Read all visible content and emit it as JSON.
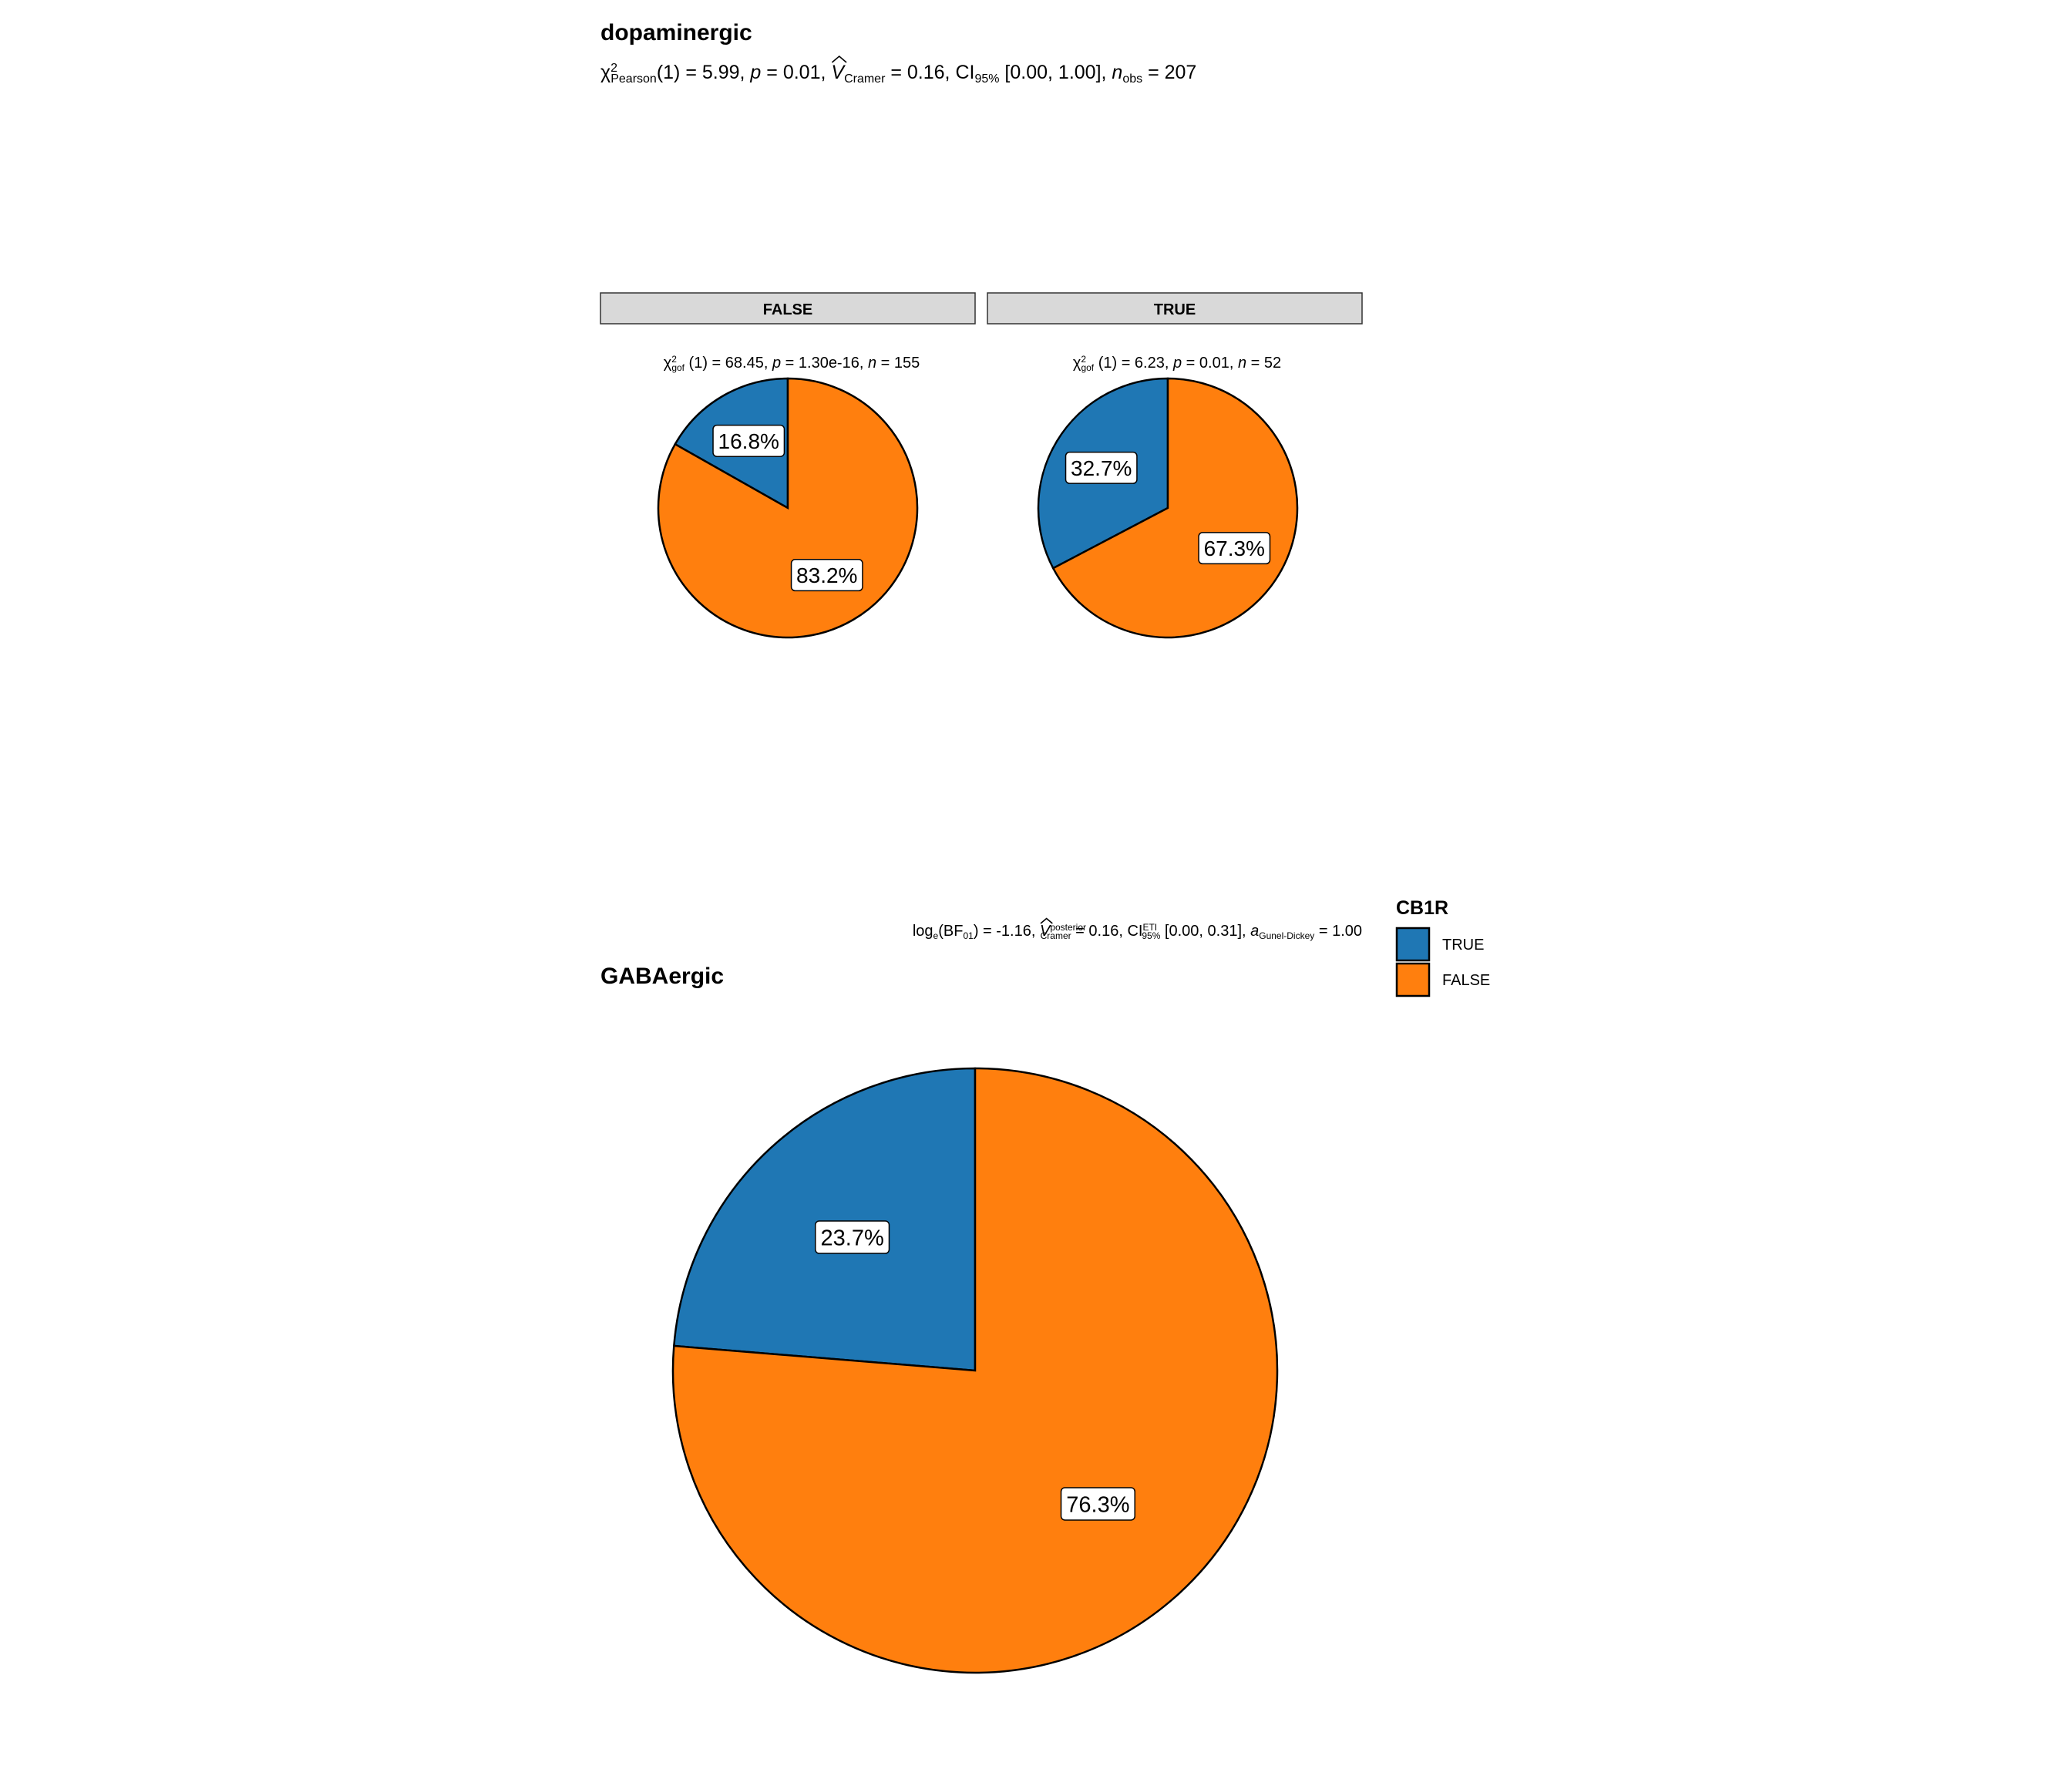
{
  "chart_data": [
    {
      "type": "pie",
      "title": "dopaminergic",
      "subtitle": {
        "parts": [
          {
            "t": "χ"
          },
          {
            "t": "2",
            "sup": true
          },
          {
            "t": "Pearson",
            "sub": true
          },
          {
            "t": "(1) = 5.99, "
          },
          {
            "t": "p",
            "it": true
          },
          {
            "t": " = 0.01, "
          },
          {
            "t": "V",
            "it": true,
            "hat": true
          },
          {
            "t": "Cramer",
            "sub": true
          },
          {
            "t": " = 0.16, CI"
          },
          {
            "t": "95%",
            "sub": true
          },
          {
            "t": " [0.00, 1.00], "
          },
          {
            "t": "n",
            "it": true
          },
          {
            "t": "obs",
            "sub": true
          },
          {
            "t": " = 207"
          }
        ]
      },
      "facets": [
        {
          "strip": "FALSE",
          "stat": {
            "parts": [
              {
                "t": "χ"
              },
              {
                "t": "2",
                "sup": true
              },
              {
                "t": "gof",
                "sub": true
              },
              {
                "t": " (1) = 68.45,   "
              },
              {
                "t": "p",
                "it": true
              },
              {
                "t": " = 1.30e-16,   "
              },
              {
                "t": "n",
                "it": true
              },
              {
                "t": " = 155"
              }
            ]
          },
          "slices": [
            {
              "category": "TRUE",
              "value": 16.8,
              "label": "16.8%"
            },
            {
              "category": "FALSE",
              "value": 83.2,
              "label": "83.2%"
            }
          ]
        },
        {
          "strip": "TRUE",
          "stat": {
            "parts": [
              {
                "t": "χ"
              },
              {
                "t": "2",
                "sup": true
              },
              {
                "t": "gof",
                "sub": true
              },
              {
                "t": " (1) = 6.23,   "
              },
              {
                "t": "p",
                "it": true
              },
              {
                "t": " = 0.01,   "
              },
              {
                "t": "n",
                "it": true
              },
              {
                "t": " = 52"
              }
            ]
          },
          "slices": [
            {
              "category": "TRUE",
              "value": 32.7,
              "label": "32.7%"
            },
            {
              "category": "FALSE",
              "value": 67.3,
              "label": "67.3%"
            }
          ]
        }
      ]
    },
    {
      "type": "pie",
      "title": "GABAergic",
      "subtitle": {
        "parts": [
          {
            "t": "log"
          },
          {
            "t": "e",
            "sub": true
          },
          {
            "t": "(BF"
          },
          {
            "t": "01",
            "sub": true
          },
          {
            "t": ") = -1.16, "
          },
          {
            "t": "V",
            "it": true,
            "hat": true
          },
          {
            "t": "posterior",
            "sup": true
          },
          {
            "t": "Cramer",
            "sub": true
          },
          {
            "t": " = 0.16, CI"
          },
          {
            "t": "ETI",
            "sup": true
          },
          {
            "t": "95%",
            "sub": true
          },
          {
            "t": " [0.00, 0.31], "
          },
          {
            "t": "a",
            "it": true
          },
          {
            "t": "Gunel-Dickey",
            "sub": true
          },
          {
            "t": " = 1.00"
          }
        ]
      },
      "slices": [
        {
          "category": "TRUE",
          "value": 23.7,
          "label": "23.7%"
        },
        {
          "category": "FALSE",
          "value": 76.3,
          "label": "76.3%"
        }
      ]
    }
  ],
  "legend": {
    "title": "CB1R",
    "placement": "right",
    "items": [
      {
        "label": "TRUE",
        "color": "#1F77B4"
      },
      {
        "label": "FALSE",
        "color": "#FF7F0E"
      }
    ]
  },
  "colors": {
    "TRUE": "#1F77B4",
    "FALSE": "#FF7F0E",
    "strip_fill": "#D9D9D9",
    "outline": "#000000"
  }
}
